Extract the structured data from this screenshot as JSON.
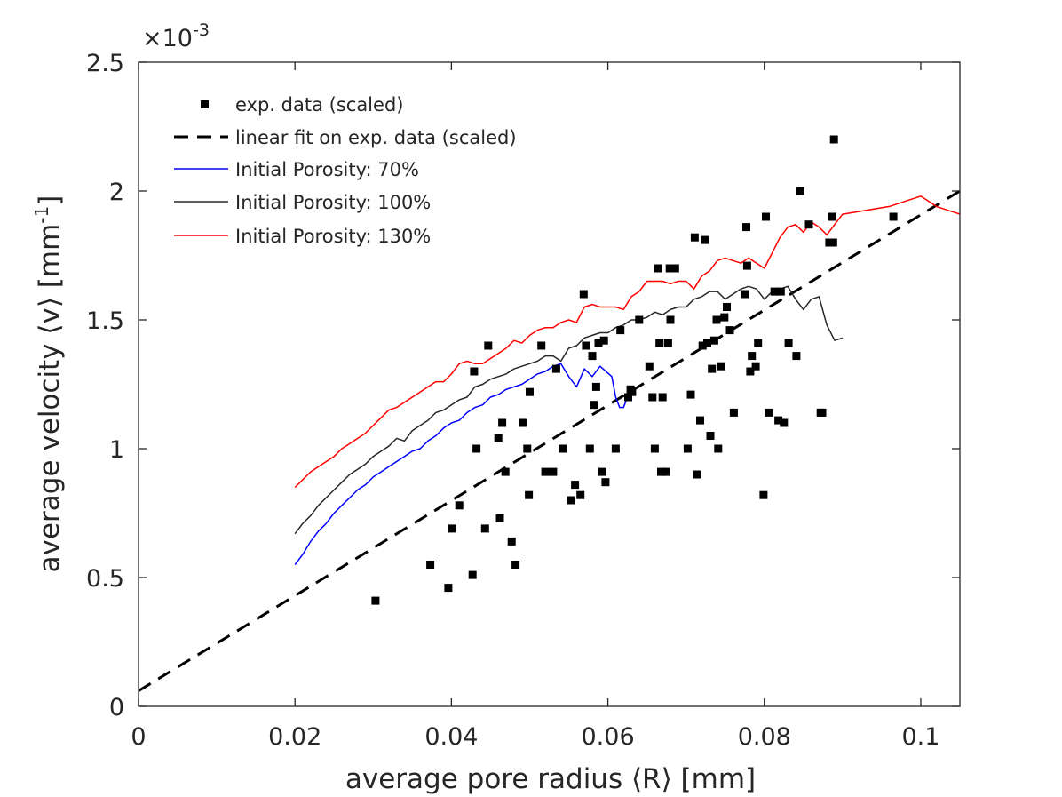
{
  "chart_data": {
    "type": "scatter",
    "title": "",
    "xlabel": "average pore radius ⟨R⟩ [mm]",
    "ylabel_main": "average velocity ⟨v⟩ [mm",
    "ylabel_sup": "-1",
    "ylabel_end": "]",
    "xlim": [
      0,
      0.105
    ],
    "ylim": [
      0,
      0.0025
    ],
    "y_exponent_label": "×10",
    "y_exponent_sup": "-3",
    "xticks": [
      0,
      0.02,
      0.04,
      0.06,
      0.08,
      0.1
    ],
    "xtick_labels": [
      "0",
      "0.02",
      "0.04",
      "0.06",
      "0.08",
      "0.1"
    ],
    "yticks": [
      0,
      0.0005,
      0.001,
      0.0015,
      0.002,
      0.0025
    ],
    "ytick_labels": [
      "0",
      "0.5",
      "1",
      "1.5",
      "2",
      "2.5"
    ],
    "grid": false,
    "legend_position": "top-left",
    "legend": [
      {
        "label": "exp. data (scaled)",
        "style": "marker",
        "color": "#000000"
      },
      {
        "label": "linear fit on exp. data (scaled)",
        "style": "dashed",
        "color": "#000000"
      },
      {
        "label": "Initial Porosity: 70%",
        "style": "line",
        "color": "#0000ff"
      },
      {
        "label": "Initial Porosity: 100%",
        "style": "line",
        "color": "#262626"
      },
      {
        "label": "Initial Porosity: 130%",
        "style": "line",
        "color": "#ff0000"
      }
    ],
    "fit_line": {
      "x": [
        0,
        0.105
      ],
      "y": [
        6e-05,
        0.002
      ]
    },
    "series": [
      {
        "name": "Initial Porosity: 70%",
        "color": "#0000ff",
        "x": [
          0.02,
          0.021,
          0.022,
          0.023,
          0.024,
          0.025,
          0.026,
          0.027,
          0.028,
          0.029,
          0.03,
          0.031,
          0.032,
          0.033,
          0.034,
          0.035,
          0.036,
          0.037,
          0.038,
          0.039,
          0.04,
          0.041,
          0.042,
          0.043,
          0.044,
          0.045,
          0.046,
          0.047,
          0.048,
          0.049,
          0.05,
          0.051,
          0.052,
          0.053,
          0.054,
          0.055,
          0.056,
          0.057,
          0.058,
          0.059,
          0.0605,
          0.061,
          0.0615,
          0.062,
          0.0625,
          0.063
        ],
        "y": [
          0.00055,
          0.00059,
          0.00064,
          0.00068,
          0.00071,
          0.00075,
          0.00078,
          0.00081,
          0.00084,
          0.00086,
          0.00089,
          0.00091,
          0.00093,
          0.00095,
          0.00097,
          0.00099,
          0.001,
          0.00103,
          0.00105,
          0.00108,
          0.0011,
          0.00111,
          0.00114,
          0.00116,
          0.00117,
          0.0012,
          0.00121,
          0.00123,
          0.00124,
          0.00125,
          0.00127,
          0.00129,
          0.0013,
          0.00132,
          0.00133,
          0.00128,
          0.00124,
          0.00131,
          0.00128,
          0.00132,
          0.00128,
          0.0012,
          0.00116,
          0.00116,
          0.0012,
          0.00122
        ]
      },
      {
        "name": "Initial Porosity: 100%",
        "color": "#262626",
        "x": [
          0.02,
          0.021,
          0.022,
          0.023,
          0.024,
          0.025,
          0.026,
          0.027,
          0.028,
          0.029,
          0.03,
          0.031,
          0.032,
          0.033,
          0.034,
          0.035,
          0.036,
          0.037,
          0.038,
          0.039,
          0.04,
          0.041,
          0.042,
          0.043,
          0.044,
          0.045,
          0.046,
          0.047,
          0.048,
          0.049,
          0.05,
          0.051,
          0.052,
          0.053,
          0.054,
          0.055,
          0.056,
          0.057,
          0.058,
          0.059,
          0.06,
          0.061,
          0.062,
          0.063,
          0.064,
          0.065,
          0.066,
          0.067,
          0.068,
          0.069,
          0.07,
          0.071,
          0.072,
          0.073,
          0.074,
          0.075,
          0.076,
          0.077,
          0.078,
          0.079,
          0.08,
          0.081,
          0.082,
          0.083,
          0.084,
          0.085,
          0.086,
          0.087,
          0.088,
          0.089,
          0.09
        ],
        "y": [
          0.00067,
          0.00071,
          0.00074,
          0.00078,
          0.00081,
          0.00084,
          0.00087,
          0.0009,
          0.00092,
          0.00094,
          0.00097,
          0.00099,
          0.00101,
          0.00104,
          0.00103,
          0.00107,
          0.00109,
          0.00111,
          0.00114,
          0.00115,
          0.00117,
          0.00119,
          0.0012,
          0.00124,
          0.00125,
          0.00127,
          0.00128,
          0.00129,
          0.00131,
          0.00132,
          0.00133,
          0.00134,
          0.00136,
          0.00136,
          0.00134,
          0.00139,
          0.0014,
          0.00143,
          0.00144,
          0.00145,
          0.00145,
          0.00147,
          0.00148,
          0.0015,
          0.0015,
          0.00151,
          0.00153,
          0.00152,
          0.00154,
          0.00155,
          0.00155,
          0.00158,
          0.00159,
          0.00161,
          0.00161,
          0.00158,
          0.0016,
          0.00162,
          0.00163,
          0.00162,
          0.00158,
          0.00161,
          0.00162,
          0.00163,
          0.00158,
          0.00154,
          0.00158,
          0.00159,
          0.00148,
          0.00142,
          0.00143
        ]
      },
      {
        "name": "Initial Porosity: 130%",
        "color": "#ff0000",
        "x": [
          0.02,
          0.021,
          0.022,
          0.023,
          0.024,
          0.025,
          0.026,
          0.027,
          0.028,
          0.029,
          0.03,
          0.031,
          0.032,
          0.033,
          0.034,
          0.035,
          0.036,
          0.037,
          0.038,
          0.039,
          0.04,
          0.041,
          0.042,
          0.043,
          0.044,
          0.045,
          0.046,
          0.047,
          0.048,
          0.049,
          0.05,
          0.051,
          0.052,
          0.053,
          0.054,
          0.055,
          0.056,
          0.057,
          0.058,
          0.059,
          0.06,
          0.061,
          0.062,
          0.063,
          0.064,
          0.065,
          0.066,
          0.067,
          0.068,
          0.069,
          0.07,
          0.071,
          0.072,
          0.073,
          0.074,
          0.075,
          0.076,
          0.077,
          0.078,
          0.079,
          0.08,
          0.081,
          0.082,
          0.083,
          0.084,
          0.085,
          0.086,
          0.087,
          0.088,
          0.089,
          0.09,
          0.092,
          0.094,
          0.096,
          0.098,
          0.1,
          0.102,
          0.104,
          0.105
        ],
        "y": [
          0.00085,
          0.00088,
          0.00091,
          0.00093,
          0.00095,
          0.00097,
          0.001,
          0.00102,
          0.00104,
          0.00106,
          0.00109,
          0.00112,
          0.00115,
          0.00116,
          0.00118,
          0.0012,
          0.00122,
          0.00124,
          0.00126,
          0.00126,
          0.00129,
          0.00133,
          0.00134,
          0.00133,
          0.00133,
          0.00135,
          0.00137,
          0.00139,
          0.00142,
          0.00141,
          0.00144,
          0.00146,
          0.00147,
          0.00147,
          0.00149,
          0.0015,
          0.00149,
          0.00155,
          0.00156,
          0.00155,
          0.00155,
          0.00155,
          0.00154,
          0.00159,
          0.00161,
          0.00165,
          0.00165,
          0.00165,
          0.00164,
          0.00165,
          0.00165,
          0.00162,
          0.00167,
          0.00169,
          0.00173,
          0.00174,
          0.00173,
          0.00172,
          0.00174,
          0.00172,
          0.0017,
          0.00176,
          0.00182,
          0.00186,
          0.00187,
          0.00184,
          0.00188,
          0.00186,
          0.00183,
          0.00187,
          0.00191,
          0.00192,
          0.00193,
          0.00194,
          0.00196,
          0.00198,
          0.00194,
          0.00192,
          0.00191
        ]
      }
    ],
    "scatter": {
      "name": "exp. data (scaled)",
      "color": "#000000",
      "x": [
        0.0303,
        0.0373,
        0.0396,
        0.0401,
        0.041,
        0.0427,
        0.0429,
        0.0432,
        0.0443,
        0.0447,
        0.046,
        0.0462,
        0.0465,
        0.0469,
        0.0477,
        0.0482,
        0.0491,
        0.0497,
        0.0499,
        0.05,
        0.0515,
        0.052,
        0.053,
        0.0534,
        0.0542,
        0.0553,
        0.0558,
        0.0565,
        0.0569,
        0.0572,
        0.0577,
        0.058,
        0.0582,
        0.0585,
        0.0588,
        0.0593,
        0.0595,
        0.0597,
        0.061,
        0.0616,
        0.0626,
        0.0629,
        0.0631,
        0.064,
        0.0653,
        0.0657,
        0.066,
        0.0664,
        0.0666,
        0.0668,
        0.067,
        0.0674,
        0.0677,
        0.0679,
        0.068,
        0.0686,
        0.0702,
        0.0706,
        0.0711,
        0.0714,
        0.0718,
        0.0721,
        0.0724,
        0.0727,
        0.0731,
        0.0733,
        0.0736,
        0.0739,
        0.0741,
        0.0745,
        0.0749,
        0.0752,
        0.0756,
        0.0761,
        0.0775,
        0.0777,
        0.0778,
        0.0782,
        0.0784,
        0.0789,
        0.0792,
        0.0799,
        0.0802,
        0.0806,
        0.0813,
        0.0818,
        0.0821,
        0.0825,
        0.0831,
        0.0841,
        0.0846,
        0.0857,
        0.0872,
        0.0874,
        0.0883,
        0.0887,
        0.0888,
        0.0889,
        0.0965
      ],
      "y": [
        0.00041,
        0.00055,
        0.00046,
        0.00069,
        0.00078,
        0.00051,
        0.0013,
        0.001,
        0.00069,
        0.0014,
        0.00104,
        0.00073,
        0.0011,
        0.00091,
        0.00064,
        0.00055,
        0.0011,
        0.001,
        0.00082,
        0.00122,
        0.0014,
        0.00091,
        0.00091,
        0.00131,
        0.001,
        0.0008,
        0.00086,
        0.00082,
        0.0016,
        0.0014,
        0.001,
        0.00136,
        0.00117,
        0.00124,
        0.00141,
        0.00091,
        0.00142,
        0.00087,
        0.001,
        0.00146,
        0.0012,
        0.00123,
        0.00122,
        0.0015,
        0.00132,
        0.0012,
        0.001,
        0.0017,
        0.00141,
        0.00091,
        0.0012,
        0.00091,
        0.00141,
        0.0017,
        0.0015,
        0.0017,
        0.001,
        0.00121,
        0.00182,
        0.0009,
        0.00111,
        0.0014,
        0.00181,
        0.00141,
        0.00105,
        0.00131,
        0.00142,
        0.0015,
        0.001,
        0.00132,
        0.00151,
        0.00155,
        0.00146,
        0.00114,
        0.0016,
        0.00186,
        0.00171,
        0.0013,
        0.00136,
        0.00132,
        0.00141,
        0.00082,
        0.0019,
        0.00114,
        0.00161,
        0.00111,
        0.00161,
        0.0011,
        0.00141,
        0.00136,
        0.002,
        0.00187,
        0.00114,
        0.00114,
        0.0018,
        0.0019,
        0.0018,
        0.0022,
        0.0019
      ]
    }
  }
}
